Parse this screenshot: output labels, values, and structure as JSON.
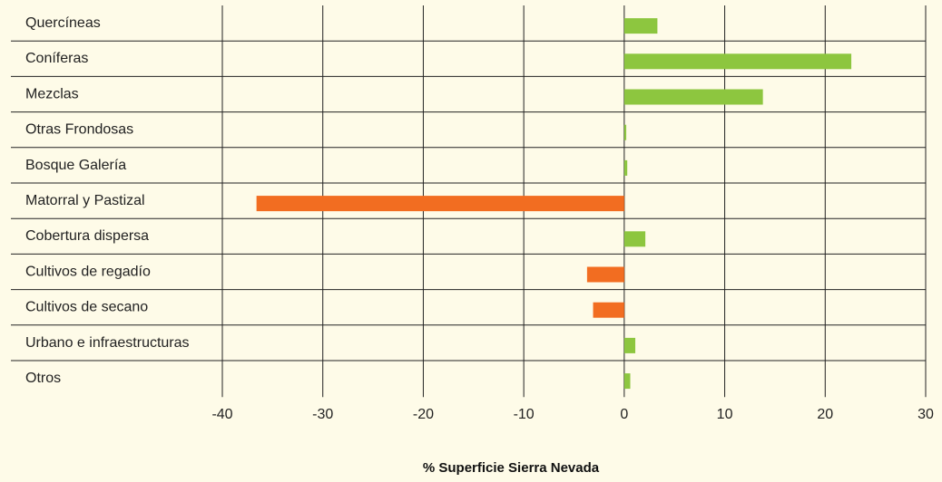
{
  "chart_data": {
    "type": "bar",
    "orientation": "horizontal",
    "categories": [
      "Quercíneas",
      "Coníferas",
      "Mezclas",
      "Otras Frondosas",
      "Bosque Galería",
      "Matorral y Pastizal",
      "Cobertura dispersa",
      "Cultivos de regadío",
      "Cultivos de secano",
      "Urbano e infraestructuras",
      "Otros"
    ],
    "values": [
      3.3,
      22.6,
      13.8,
      0.2,
      0.3,
      -36.6,
      2.1,
      -3.7,
      -3.1,
      1.1,
      0.6
    ],
    "xlabel": "% Superficie Sierra Nevada",
    "ylabel": "",
    "xlim": [
      -40,
      30
    ],
    "xticks": [
      -40,
      -30,
      -20,
      -10,
      0,
      10,
      20,
      30
    ],
    "xtick_labels": [
      "-40",
      "-30",
      "-20",
      "-10",
      "0",
      "10",
      "20",
      "30"
    ],
    "grid": true,
    "colors": {
      "positive": "#8dc63f",
      "negative": "#f26d21",
      "background": "#fefbe8",
      "lines": "#222222"
    }
  }
}
